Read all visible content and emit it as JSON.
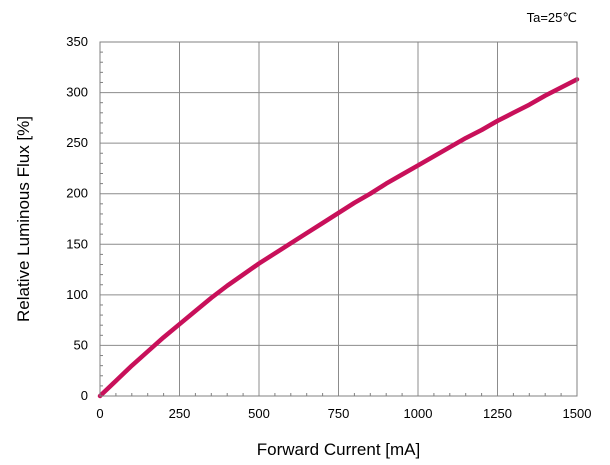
{
  "chart_data": {
    "type": "line",
    "xlabel": "Forward Current [mA]",
    "ylabel": "Relative Luminous Flux [%]",
    "annotation": "Ta=25℃",
    "xlim": [
      0,
      1500
    ],
    "ylim": [
      0,
      350
    ],
    "xticks": [
      0,
      250,
      500,
      750,
      1000,
      1250,
      1500
    ],
    "yticks": [
      0,
      50,
      100,
      150,
      200,
      250,
      300,
      350
    ],
    "grid": true,
    "series": [
      {
        "color": "#c8105a",
        "x": [
          0,
          50,
          100,
          150,
          200,
          250,
          300,
          350,
          400,
          450,
          500,
          550,
          600,
          650,
          700,
          750,
          800,
          850,
          900,
          950,
          1000,
          1050,
          1100,
          1150,
          1200,
          1250,
          1300,
          1350,
          1400,
          1450,
          1500
        ],
        "y": [
          0,
          15,
          30,
          44,
          58,
          71,
          84,
          97,
          109,
          120,
          131,
          141,
          151,
          161,
          171,
          181,
          191,
          200,
          210,
          219,
          228,
          237,
          246,
          255,
          263,
          272,
          280,
          288,
          297,
          305,
          313
        ]
      }
    ]
  }
}
